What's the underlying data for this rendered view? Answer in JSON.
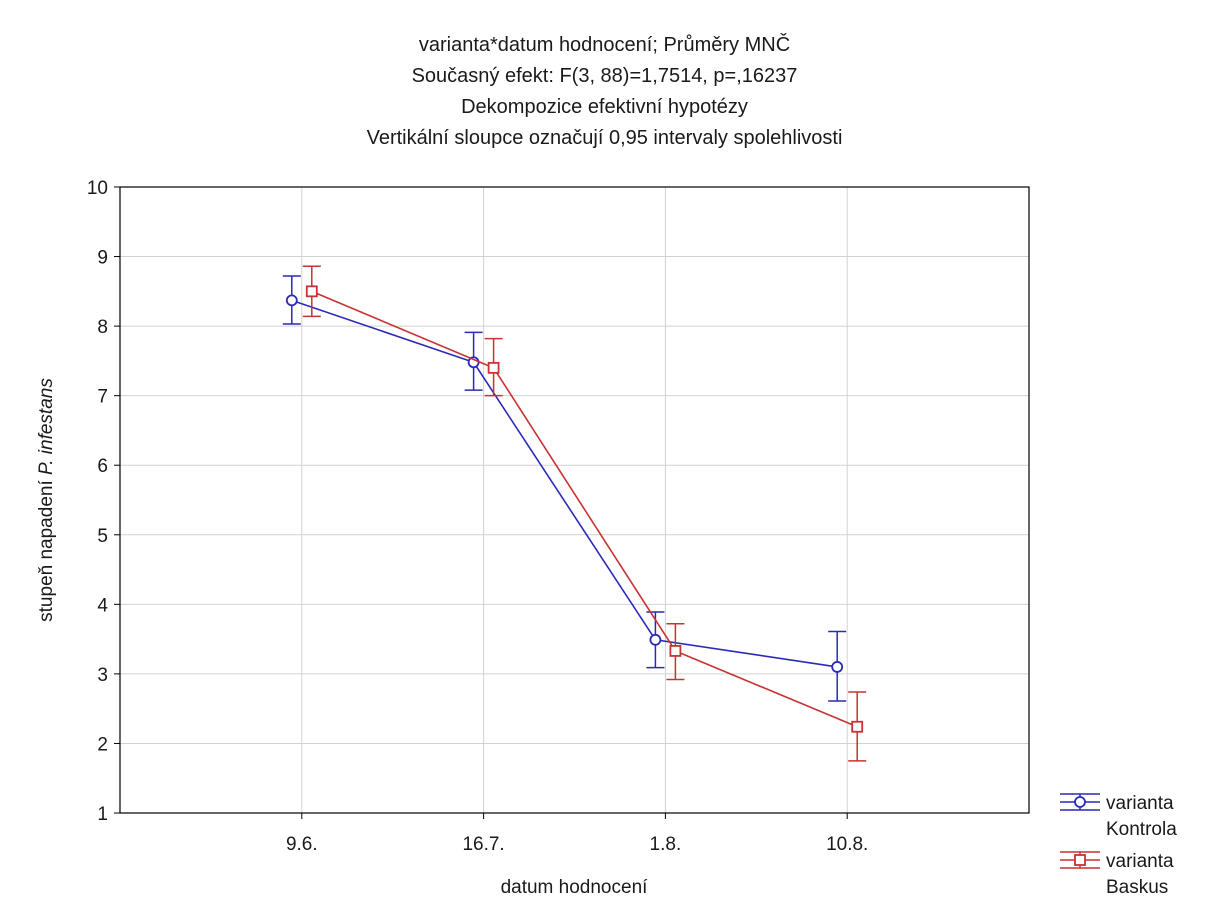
{
  "chart_data": {
    "type": "line",
    "title": [
      "varianta*datum hodnocení; Průměry MNČ",
      "Současný efekt: F(3, 88)=1,7514, p=,16237",
      "Dekompozice efektivní hypotézy",
      "Vertikální sloupce označují 0,95 intervaly spolehlivosti"
    ],
    "xlabel": "datum hodnocení",
    "ylabel_prefix": "stupeň napadení ",
    "ylabel_italic": "P. infestans",
    "categories": [
      "9.6.",
      "16.7.",
      "1.8.",
      "10.8."
    ],
    "ylim": [
      1,
      10
    ],
    "yticks": [
      1,
      2,
      3,
      4,
      5,
      6,
      7,
      8,
      9,
      10
    ],
    "grid": true,
    "legend_position": "bottom-right outside",
    "series": [
      {
        "name": [
          "varianta",
          "Kontrola"
        ],
        "color": "#2a2ab8",
        "marker": "circle",
        "values": [
          8.37,
          7.48,
          3.49,
          3.1
        ],
        "ci_low": [
          8.03,
          7.08,
          3.09,
          2.61
        ],
        "ci_high": [
          8.72,
          7.91,
          3.89,
          3.61
        ]
      },
      {
        "name": [
          "varianta",
          "Baskus"
        ],
        "color": "#c83232",
        "marker": "square",
        "values": [
          8.5,
          7.4,
          3.33,
          2.24
        ],
        "ci_low": [
          8.14,
          7.0,
          2.92,
          1.75
        ],
        "ci_high": [
          8.86,
          7.82,
          3.72,
          2.74
        ]
      }
    ]
  }
}
